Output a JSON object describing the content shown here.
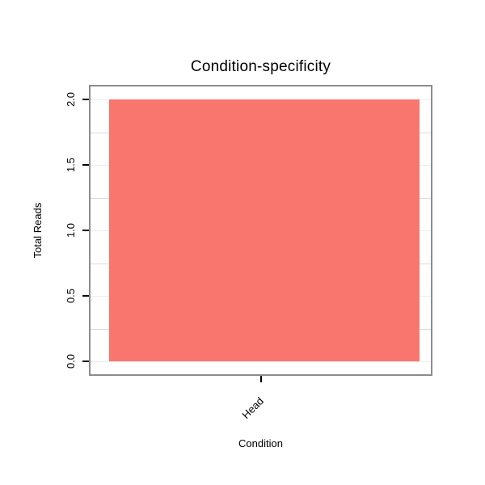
{
  "chart_data": {
    "type": "bar",
    "title": "Condition-specificity",
    "categories": [
      "Head"
    ],
    "values": [
      2
    ],
    "xlabel": "Condition",
    "ylabel": "Total Reads",
    "ylim": [
      0,
      2
    ],
    "yticks": [
      "0.0",
      "0.5",
      "1.0",
      "1.5",
      "2.0"
    ],
    "grid": true,
    "legend_position": "none",
    "colors": {
      "bar": "#F8766D",
      "panel_border": "#8C8C8C",
      "grid_major": "#ECECEC",
      "grid_minor": "#DCDCDC",
      "tick": "#000000"
    }
  }
}
